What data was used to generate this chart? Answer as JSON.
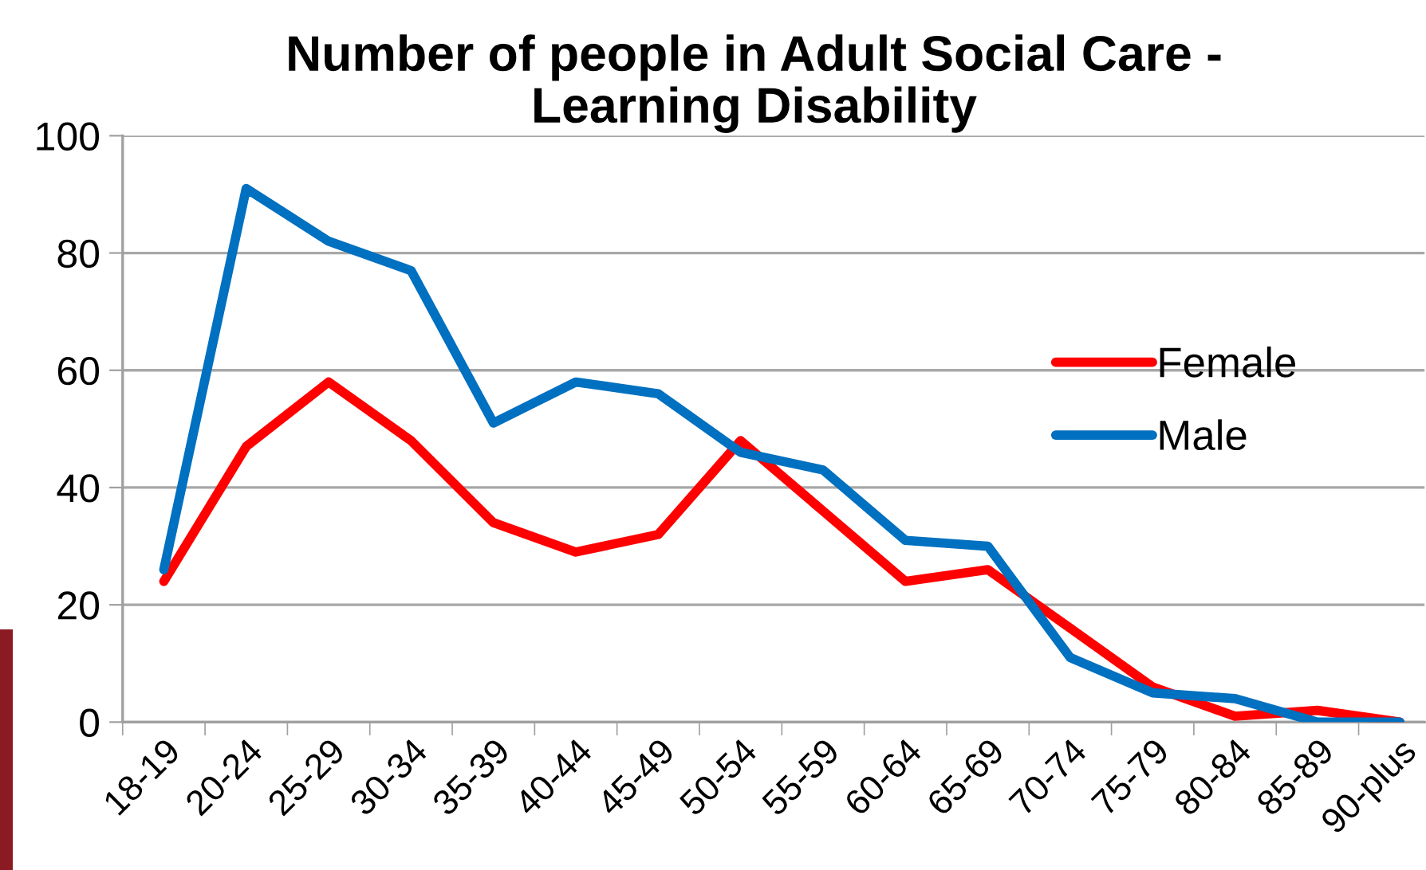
{
  "chart_data": {
    "type": "line",
    "title": "Number of people in Adult Social Care -\nLearning Disability",
    "categories": [
      "18-19",
      "20-24",
      "25-29",
      "30-34",
      "35-39",
      "40-44",
      "45-49",
      "50-54",
      "55-59",
      "60-64",
      "65-69",
      "70-74",
      "75-79",
      "80-84",
      "85-89",
      "90-plus"
    ],
    "series": [
      {
        "name": "Female",
        "color": "#ff0000",
        "values": [
          24,
          47,
          58,
          48,
          34,
          29,
          32,
          48,
          36,
          24,
          26,
          16,
          6,
          1,
          2,
          0
        ]
      },
      {
        "name": "Male",
        "color": "#0070c0",
        "values": [
          26,
          91,
          82,
          77,
          51,
          58,
          56,
          46,
          43,
          31,
          30,
          11,
          5,
          4,
          0,
          0
        ]
      }
    ],
    "ylim": [
      0,
      100
    ],
    "yticks": [
      0,
      20,
      40,
      60,
      80,
      100
    ],
    "grid": "y",
    "legend": "right",
    "marker": "none",
    "line_style": "solid"
  }
}
